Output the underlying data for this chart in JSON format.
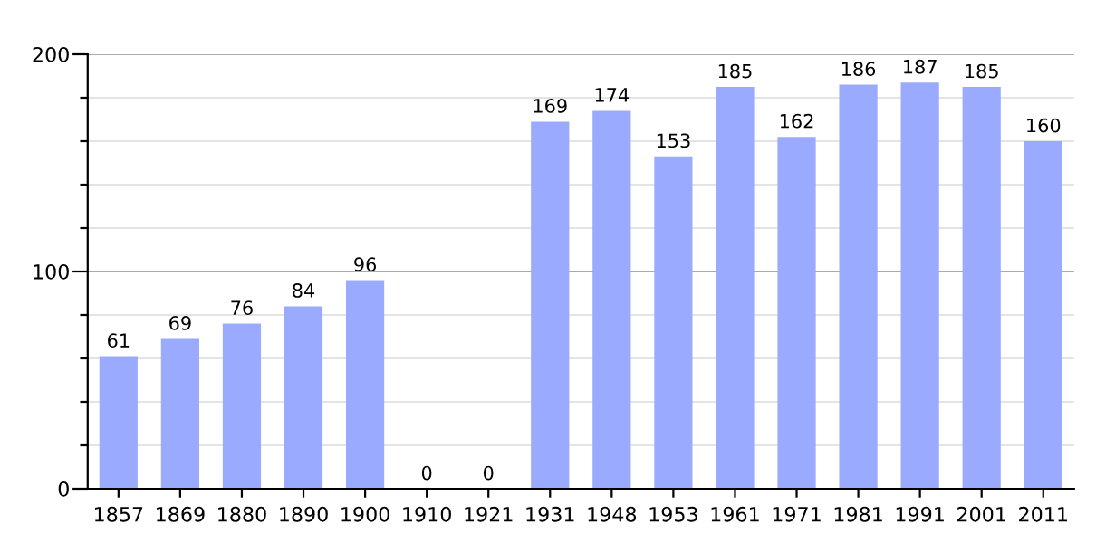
{
  "chart_data": {
    "type": "bar",
    "categories": [
      "1857",
      "1869",
      "1880",
      "1890",
      "1900",
      "1910",
      "1921",
      "1931",
      "1948",
      "1953",
      "1961",
      "1971",
      "1981",
      "1991",
      "2001",
      "2011"
    ],
    "values": [
      61,
      69,
      76,
      84,
      96,
      0,
      0,
      169,
      174,
      153,
      185,
      162,
      186,
      187,
      185,
      160
    ],
    "color": "#99aaff",
    "ylim": [
      0,
      200
    ],
    "yticks": [
      0,
      {
        "value": 20,
        "label": null
      },
      {
        "value": 40,
        "label": null
      },
      {
        "value": 60,
        "label": null
      },
      {
        "value": 80,
        "label": null
      },
      100,
      {
        "value": 120,
        "label": null
      },
      {
        "value": 140,
        "label": null
      },
      {
        "value": 160,
        "label": null
      },
      {
        "value": 180,
        "label": null
      },
      200
    ],
    "grid": "y",
    "ref_lines": [
      {
        "axis": "y",
        "value": 100,
        "color": "#aaaaaa"
      },
      {
        "axis": "y",
        "value": 200,
        "color": "#aaaaaa"
      }
    ],
    "data_labels": true
  }
}
